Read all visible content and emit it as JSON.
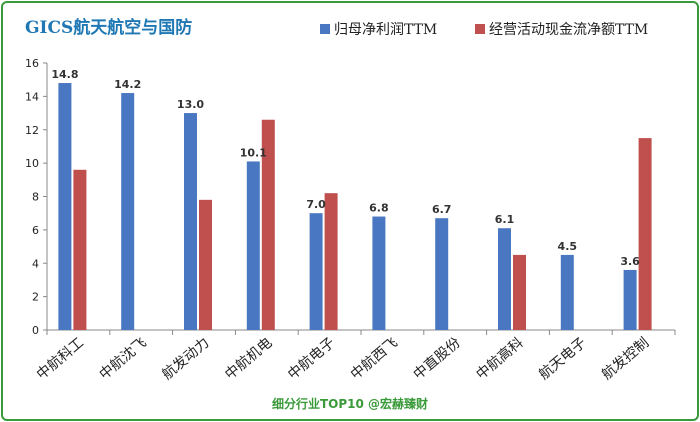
{
  "chart_data": {
    "type": "bar",
    "title": "GICS航天航空与国防",
    "categories": [
      "中航科工",
      "中航沈飞",
      "航发动力",
      "中航机电",
      "中航电子",
      "中航西飞",
      "中直股份",
      "中航高科",
      "航天电子",
      "航发控制"
    ],
    "series": [
      {
        "name": "归母净利润TTM",
        "color": "#4a77c2",
        "values": [
          14.8,
          14.2,
          13.0,
          10.1,
          7.0,
          6.8,
          6.7,
          6.1,
          4.5,
          3.6
        ],
        "labels": [
          "14.8",
          "14.2",
          "13.0",
          "10.1",
          "7.0",
          "6.8",
          "6.7",
          "6.1",
          "4.5",
          "3.6"
        ]
      },
      {
        "name": "经营活动现金流净额TTM",
        "color": "#c0504d",
        "values": [
          9.6,
          null,
          7.8,
          12.6,
          8.2,
          null,
          null,
          4.5,
          null,
          11.5
        ]
      }
    ],
    "ylim": [
      0,
      16
    ],
    "yticks": [
      "0",
      "2",
      "4",
      "6",
      "8",
      "10",
      "12",
      "14",
      "16"
    ],
    "grid": false,
    "legend_position": "top-right",
    "footer": "细分行业TOP10 @宏赫臻财"
  }
}
